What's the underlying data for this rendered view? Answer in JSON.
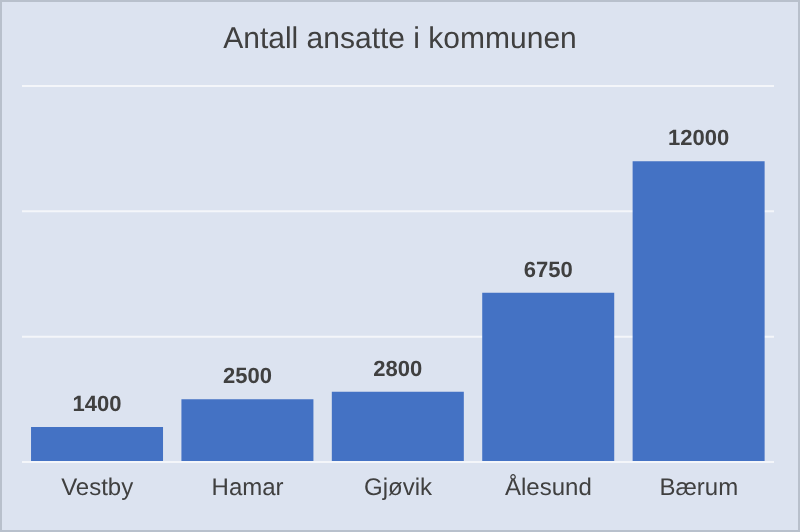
{
  "chart_data": {
    "type": "bar",
    "title": "Antall ansatte i kommunen",
    "categories": [
      "Vestby",
      "Hamar",
      "Gjøvik",
      "Ålesund",
      "Bærum"
    ],
    "values": [
      1400,
      2500,
      2800,
      6750,
      12000
    ],
    "color": "#4472c4",
    "ylim": [
      0,
      15000
    ],
    "yticks": [
      {
        "value": 0,
        "label": null
      },
      {
        "value": 5000,
        "label": null
      },
      {
        "value": 10000,
        "label": null
      },
      {
        "value": 15000,
        "label": null
      }
    ],
    "tick_labels": "x",
    "grid": "y",
    "data_labels": true
  }
}
